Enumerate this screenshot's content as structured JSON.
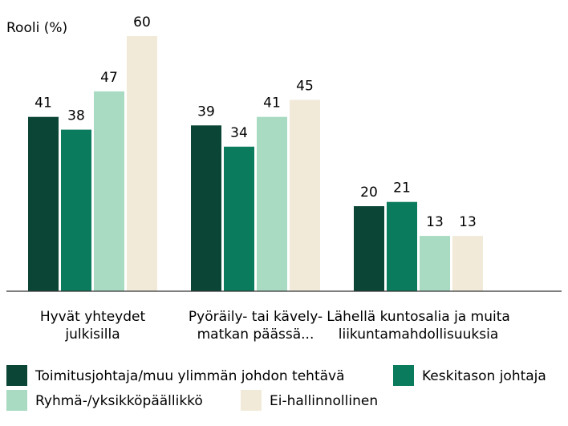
{
  "chart_data": {
    "type": "bar",
    "ylabel": "Rooli (%)",
    "ylim": [
      0,
      60
    ],
    "categories": [
      [
        "Hyvät yhteydet",
        "julkisilla"
      ],
      [
        "Pyöräily- tai kävely-",
        "matkan päässä..."
      ],
      [
        "Lähellä kuntosalia ja muita",
        "liikuntamahdollisuuksia"
      ]
    ],
    "series": [
      {
        "name": "Toimitusjohtaja/muu ylimmän johdon tehtävä",
        "color": "#0b4536",
        "values": [
          41,
          39,
          20
        ]
      },
      {
        "name": "Keskitason johtaja",
        "color": "#0a7b5c",
        "values": [
          38,
          34,
          21
        ]
      },
      {
        "name": "Ryhmä-/yksikköpäällikkö",
        "color": "#a8dbc2",
        "values": [
          47,
          41,
          13
        ]
      },
      {
        "name": "Ei-hallinnollinen",
        "color": "#f1ead8",
        "values": [
          60,
          45,
          13
        ]
      }
    ],
    "grid": false,
    "legend_position": "bottom"
  }
}
